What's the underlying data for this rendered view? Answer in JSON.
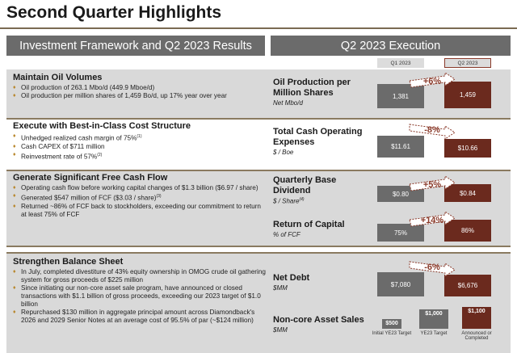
{
  "title": "Second Quarter Highlights",
  "left_header": "Investment Framework and Q2 2023 Results",
  "right_header": "Q2 2023 Execution",
  "col_q1": "Q1 2023",
  "col_q2": "Q2 2023",
  "sections": [
    {
      "title": "Maintain Oil Volumes",
      "bullets": [
        "Oil production of 263.1 Mbo/d (449.9 Mboe/d)",
        "Oil production per million shares of 1,459 Bo/d, up 17% year over year"
      ]
    },
    {
      "title": "Execute with Best-in-Class Cost Structure",
      "bullets": [
        "Unhedged realized cash margin of 75%",
        "Cash CAPEX of $711 million",
        "Reinvestment rate of 57%"
      ],
      "sups": [
        "(1)",
        "",
        "(2)"
      ]
    },
    {
      "title": "Generate Significant Free Cash Flow",
      "bullets": [
        "Operating cash flow before working capital changes of $1.3 billion ($6.97 / share)",
        "Generated $547 million of FCF ($3.03 / share)",
        "Returned ~86% of FCF back to stockholders, exceeding our commitment to return at least 75% of FCF"
      ],
      "sups": [
        "",
        "(3)",
        ""
      ]
    },
    {
      "title": "Strengthen Balance Sheet",
      "bullets": [
        "In July, completed divestiture of 43% equity ownership in OMOG crude oil gathering system for gross proceeds of $225 million",
        "Since initiating our non-core asset sale program, have announced or closed transactions with $1.1 billion of gross proceeds, exceeding our 2023 target of $1.0 billion",
        "Repurchased $130 million in aggregate principal amount across Diamondback's 2026 and 2029 Senior Notes at an average cost of 95.5% of par (~$124 million)"
      ]
    }
  ],
  "metrics": [
    {
      "name": "Oil Production per Million Shares",
      "unit": "Net Mbo/d",
      "q1": "1,381",
      "q2": "1,459",
      "change": "+6%"
    },
    {
      "name": "Total Cash Operating Expenses",
      "unit": "$ / Boe",
      "q1": "$11.61",
      "q2": "$10.66",
      "change": "-8%"
    },
    {
      "name": "Quarterly Base Dividend",
      "unit": "$ / Share",
      "unit_sup": "(4)",
      "q1": "$0.80",
      "q2": "$0.84",
      "change": "+5%"
    },
    {
      "name": "Return of Capital",
      "unit": "% of FCF",
      "q1": "75%",
      "q2": "86%",
      "change": "+14%"
    },
    {
      "name": "Net Debt",
      "unit": "$MM",
      "q1": "$7,080",
      "q2": "$6,676",
      "change": "-6%"
    },
    {
      "name": "Non-core Asset Sales",
      "unit": "$MM"
    }
  ],
  "asset_sales": {
    "bars": [
      {
        "value": "$500",
        "label": "Initial YE23 Target",
        "amount": 500
      },
      {
        "value": "$1,000",
        "label": "YE23 Target",
        "amount": 1000
      },
      {
        "value": "$1,100",
        "label": "Announced or Completed",
        "amount": 1100
      }
    ]
  },
  "colors": {
    "q1_bar": "#6b6b6b",
    "q2_bar": "#6b2a1e",
    "band": "#d9d9d9",
    "accent": "#b8862b"
  }
}
